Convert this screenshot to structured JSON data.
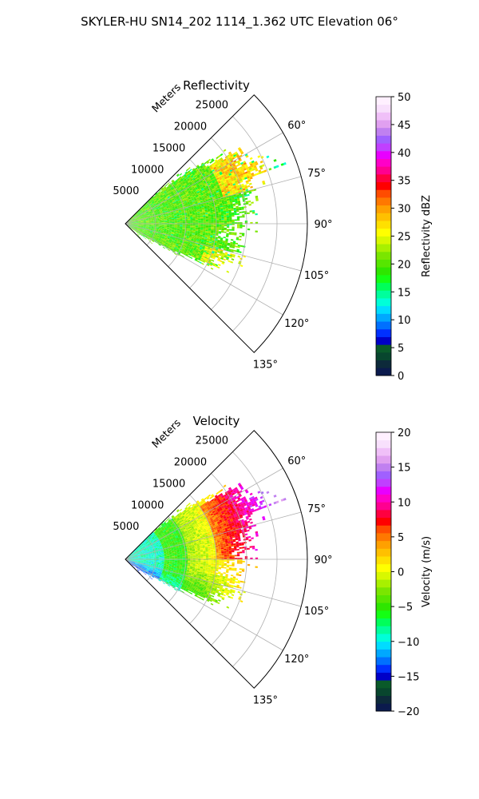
{
  "figure": {
    "suptitle": "SKYLER-HU  SN14_202  1114_1.362 UTC Elevation 06°"
  },
  "chart_data": [
    {
      "type": "heatmap",
      "projection": "polar-sector",
      "title": "Reflectivity",
      "radial_label": "Meters",
      "radial_ticks": [
        "5000",
        "10000",
        "15000",
        "20000",
        "25000"
      ],
      "radial_range": [
        0,
        30000
      ],
      "azimuth_ticks": [
        "60°",
        "75°",
        "90°",
        "105°",
        "120°",
        "135°"
      ],
      "azimuth_range_deg": [
        45,
        135
      ],
      "grid": true,
      "colorbar": {
        "label": "Reflectivity dBZ",
        "range": [
          0,
          50
        ],
        "ticks": [
          "0",
          "5",
          "10",
          "15",
          "20",
          "25",
          "30",
          "35",
          "40",
          "45",
          "50"
        ],
        "colors": [
          "#0b1a4d",
          "#0d2a3a",
          "#08462e",
          "#0a5a2a",
          "#0000c8",
          "#0030ff",
          "#0070ff",
          "#00a8ff",
          "#00dcff",
          "#00ffd8",
          "#00ff9c",
          "#00ff5a",
          "#14ff14",
          "#2ee600",
          "#56e600",
          "#7ae600",
          "#a8f000",
          "#d8f800",
          "#ffff00",
          "#ffe000",
          "#ffc000",
          "#ffa000",
          "#ff7800",
          "#ff4c00",
          "#ff0000",
          "#ff0040",
          "#ff0090",
          "#ff00c8",
          "#e800ff",
          "#c040ff",
          "#a060ff",
          "#c080f0",
          "#e0a0f0",
          "#f0c0f8",
          "#f8e0fc",
          "#fff0ff"
        ]
      },
      "field_description": "mostly 18-25 dBZ, patches of 26-32 dBZ, sparse 12-16 at edges"
    },
    {
      "type": "heatmap",
      "projection": "polar-sector",
      "title": "Velocity",
      "radial_label": "Meters",
      "radial_ticks": [
        "5000",
        "10000",
        "15000",
        "20000",
        "25000"
      ],
      "radial_range": [
        0,
        30000
      ],
      "azimuth_ticks": [
        "60°",
        "75°",
        "90°",
        "105°",
        "120°",
        "135°"
      ],
      "azimuth_range_deg": [
        45,
        135
      ],
      "grid": true,
      "colorbar": {
        "label": "Velocity (m/s)",
        "range": [
          -20,
          20
        ],
        "ticks": [
          "−20",
          "−15",
          "−10",
          "−5",
          "0",
          "5",
          "10",
          "15",
          "20"
        ],
        "colors": [
          "#0b1a4d",
          "#0d2a3a",
          "#08462e",
          "#0a5a2a",
          "#0000c8",
          "#0030ff",
          "#0070ff",
          "#00a8ff",
          "#00dcff",
          "#00ffd8",
          "#00ff9c",
          "#00ff5a",
          "#14ff14",
          "#2ee600",
          "#56e600",
          "#7ae600",
          "#a8f000",
          "#d8f800",
          "#ffff00",
          "#ffe000",
          "#ffc000",
          "#ffa000",
          "#ff7800",
          "#ff4c00",
          "#ff0000",
          "#ff0040",
          "#ff0090",
          "#ff00c8",
          "#e800ff",
          "#c040ff",
          "#a060ff",
          "#c080f0",
          "#e0a0f0",
          "#f0c0f8",
          "#f8e0fc",
          "#fff0ff"
        ]
      },
      "field_description": "green near radar (-10 to -5), yellow/orange mid range (0 to 8), red/magenta far north-east (10 to 13)"
    }
  ]
}
